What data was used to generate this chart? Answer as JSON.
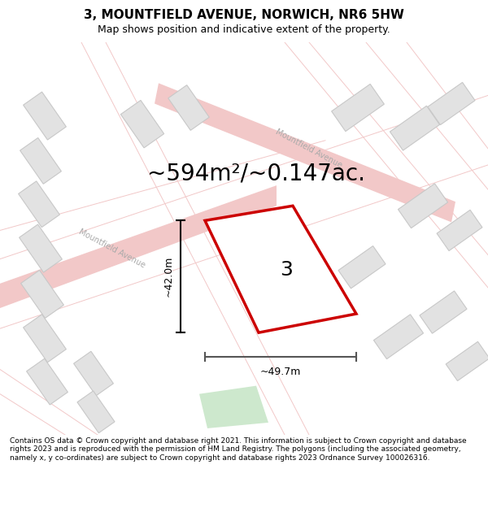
{
  "title": "3, MOUNTFIELD AVENUE, NORWICH, NR6 5HW",
  "subtitle": "Map shows position and indicative extent of the property.",
  "footer": "Contains OS data © Crown copyright and database right 2021. This information is subject to Crown copyright and database rights 2023 and is reproduced with the permission of HM Land Registry. The polygons (including the associated geometry, namely x, y co-ordinates) are subject to Crown copyright and database rights 2023 Ordnance Survey 100026316.",
  "area_text": "~594m²/~0.147ac.",
  "dim_width": "~49.7m",
  "dim_height": "~42.0m",
  "label_number": "3",
  "map_bg": "#f7f7f7",
  "road_color": "#f2c8c8",
  "building_color": "#e2e2e2",
  "building_stroke": "#c8c8c8",
  "plot_color": "#ffffff",
  "plot_stroke": "#cc0000",
  "green_color": "#cde8cd",
  "road_label_color": "#aaaaaa",
  "title_fontsize": 11,
  "subtitle_fontsize": 9,
  "footer_fontsize": 6.5,
  "area_fontsize": 20,
  "dim_fontsize": 9,
  "label_fontsize": 18
}
